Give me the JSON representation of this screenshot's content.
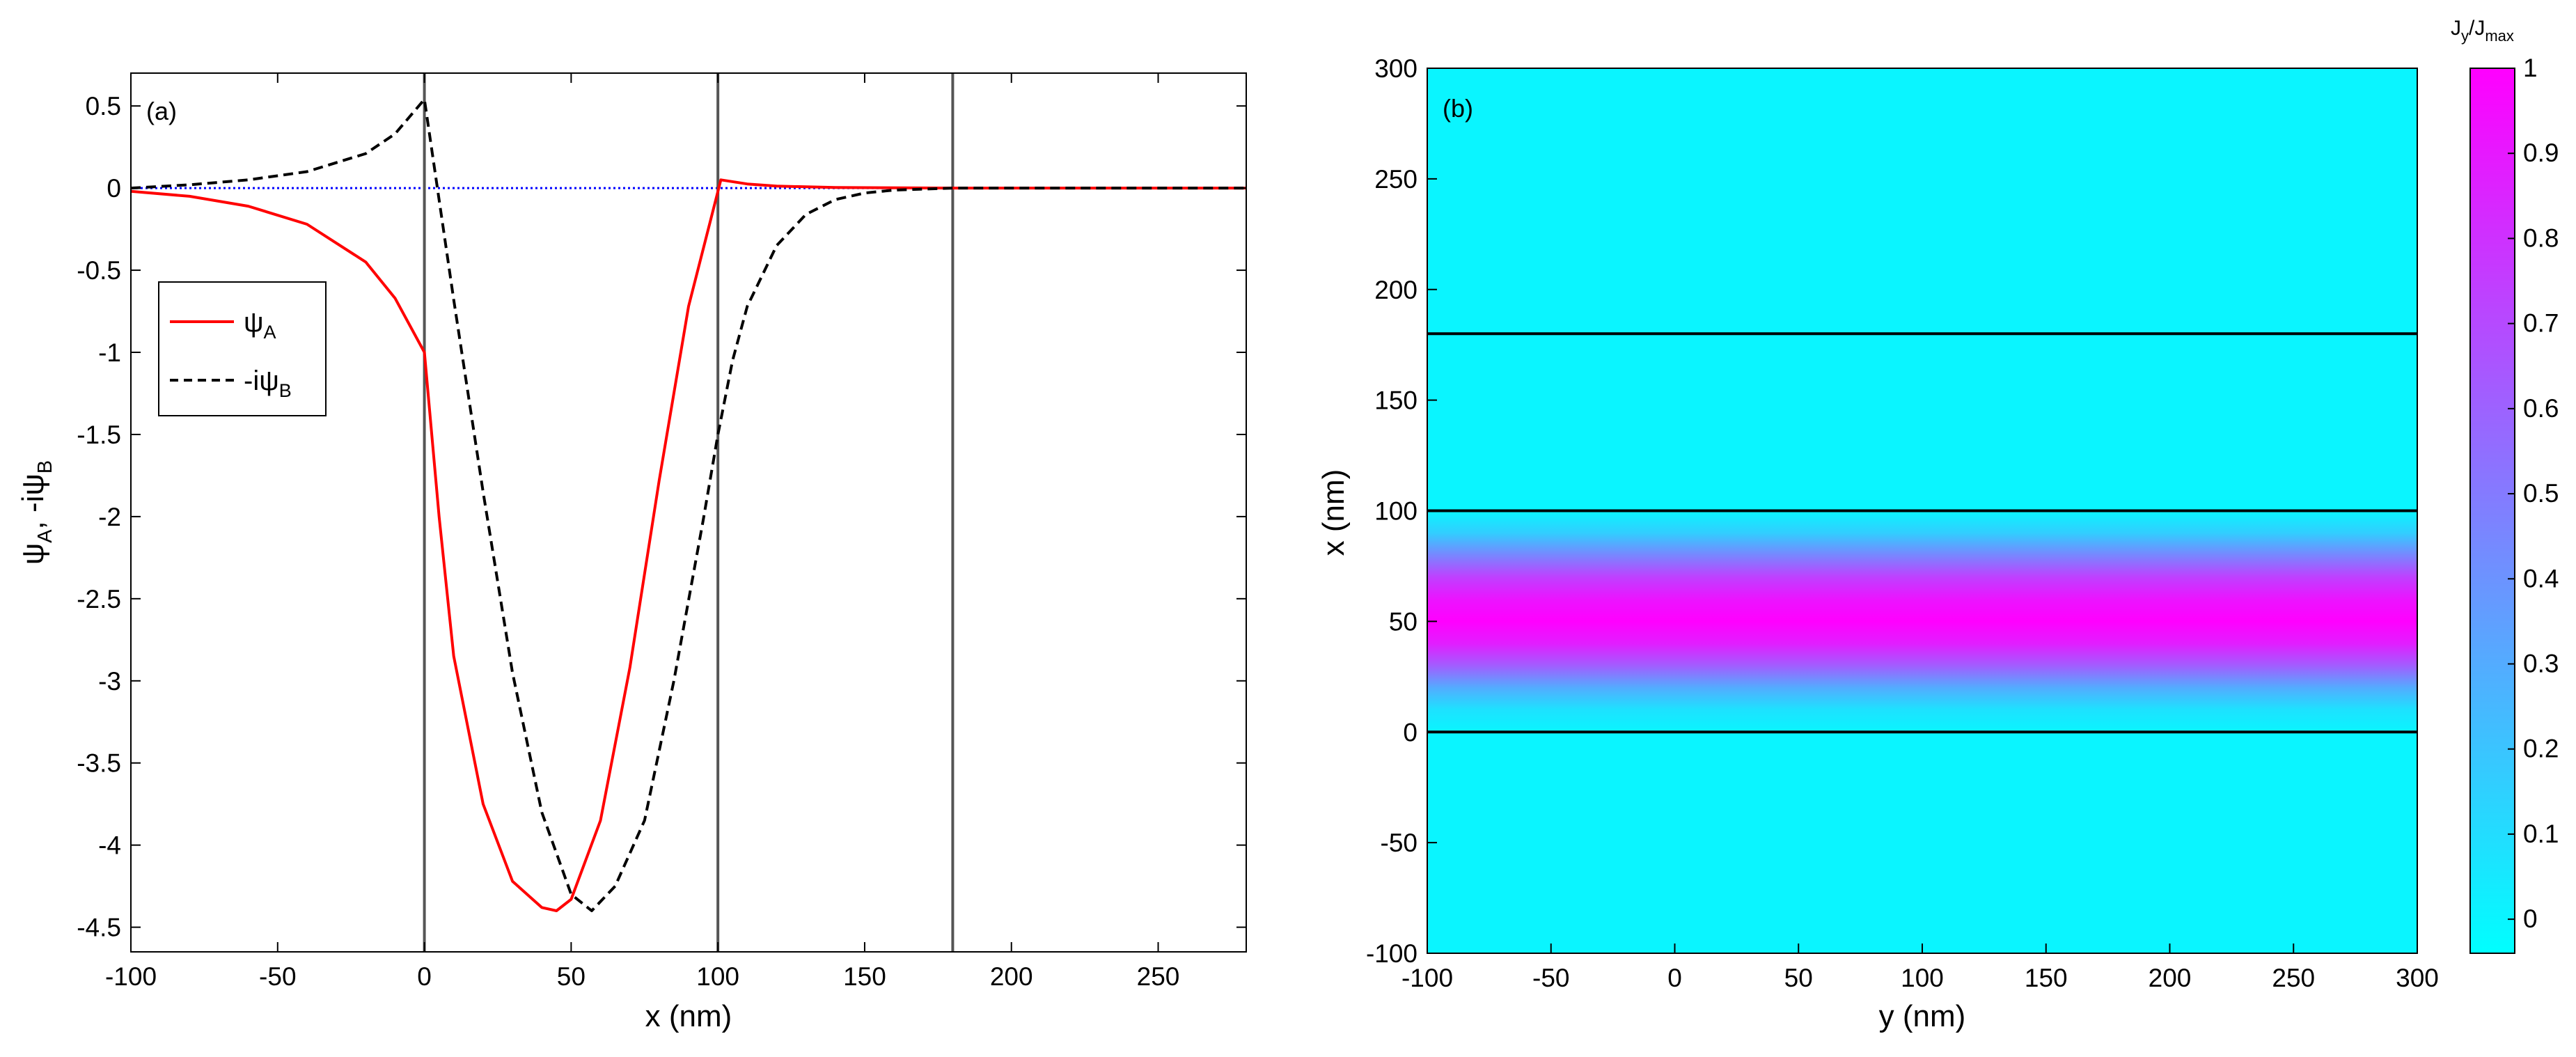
{
  "colors": {
    "psi_a": "#ff0000",
    "psi_b": "#000000",
    "zero_line": "#0000ff",
    "boundary": "#555555",
    "map_low": "#00ffff",
    "map_high": "#ff00ff"
  },
  "chart_data": [
    {
      "panel": "(a)",
      "type": "line",
      "xlabel": "x (nm)",
      "ylabel": {
        "main": "ψ",
        "sub_a": "A",
        "mid": ", -iψ",
        "sub_b": "B"
      },
      "xlim": [
        -100,
        280
      ],
      "ylim": [
        -4.65,
        0.7
      ],
      "x_ticks": [
        -100,
        -50,
        0,
        50,
        100,
        150,
        200,
        250
      ],
      "y_ticks": [
        0.5,
        0,
        -0.5,
        -1,
        -1.5,
        -2,
        -2.5,
        -3,
        -3.5,
        -4,
        -4.5
      ],
      "boundaries_x": [
        0,
        100,
        180
      ],
      "legend": {
        "position": "upper-left"
      },
      "series": [
        {
          "name": "ψ_A",
          "legend_main": "ψ",
          "legend_sub": "A",
          "style": "solid",
          "color": "#ff0000",
          "x": [
            -100,
            -80,
            -60,
            -40,
            -20,
            -10,
            0,
            5,
            10,
            20,
            30,
            40,
            45,
            50,
            60,
            70,
            80,
            90,
            100,
            101,
            110,
            120,
            140,
            180,
            280
          ],
          "y": [
            -0.02,
            -0.05,
            -0.11,
            -0.22,
            -0.45,
            -0.67,
            -1.0,
            -2.0,
            -2.85,
            -3.75,
            -4.22,
            -4.38,
            -4.4,
            -4.33,
            -3.85,
            -2.92,
            -1.78,
            -0.72,
            -0.02,
            0.05,
            0.025,
            0.012,
            0.004,
            0.0,
            0.0
          ]
        },
        {
          "name": "-iψ_B",
          "legend_main": "-iψ",
          "legend_sub": "B",
          "style": "dashed",
          "color": "#000000",
          "x": [
            -100,
            -80,
            -60,
            -40,
            -20,
            -10,
            0,
            10,
            20,
            30,
            40,
            50,
            57,
            65,
            75,
            85,
            95,
            100,
            105,
            110,
            120,
            130,
            140,
            150,
            160,
            180,
            280
          ],
          "y": [
            0.0,
            0.02,
            0.05,
            0.1,
            0.21,
            0.33,
            0.54,
            -0.68,
            -1.85,
            -2.95,
            -3.8,
            -4.3,
            -4.4,
            -4.25,
            -3.85,
            -3.0,
            -2.02,
            -1.5,
            -1.05,
            -0.72,
            -0.35,
            -0.16,
            -0.07,
            -0.03,
            -0.012,
            0.0,
            0.0
          ]
        }
      ]
    },
    {
      "panel": "(b)",
      "type": "heatmap",
      "xlabel": "y (nm)",
      "ylabel": "x (nm)",
      "xlim": [
        -100,
        300
      ],
      "ylim": [
        -100,
        300
      ],
      "x_ticks": [
        -100,
        -50,
        0,
        50,
        100,
        150,
        200,
        250,
        300
      ],
      "y_ticks": [
        -100,
        -50,
        0,
        50,
        100,
        150,
        200,
        250,
        300
      ],
      "boundaries_x": [
        0,
        100,
        180
      ],
      "profile_x": [
        -100,
        0,
        10,
        20,
        30,
        40,
        50,
        60,
        70,
        80,
        90,
        100,
        300
      ],
      "profile_value": [
        0.0,
        0.0,
        0.08,
        0.3,
        0.62,
        0.88,
        1.0,
        0.92,
        0.74,
        0.45,
        0.16,
        0.0,
        0.0
      ],
      "colorbar": {
        "title_main": "J",
        "title_sub1": "y",
        "title_mid": "/J",
        "title_sub2": "max",
        "range": [
          -0.04,
          1.0
        ],
        "ticks": [
          1,
          0.9,
          0.8,
          0.7,
          0.6,
          0.5,
          0.4,
          0.3,
          0.2,
          0.1,
          0
        ],
        "tick_labels": [
          "1",
          "0.9",
          "0.8",
          "0.7",
          "0.6",
          "0.5",
          "0.4",
          "0.3",
          "0.2",
          "0.1",
          "0"
        ],
        "colormap": "cool"
      }
    }
  ]
}
